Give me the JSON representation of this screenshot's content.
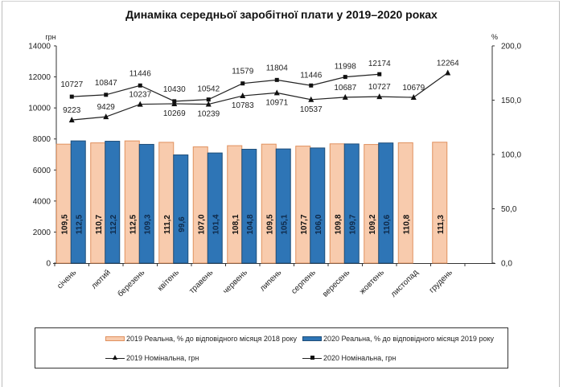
{
  "chart_data": {
    "type": "bar",
    "title": "Динаміка середньої заробітної плати у 2019–2020 роках",
    "categories": [
      "січень",
      "лютий",
      "березень",
      "квітень",
      "травень",
      "червень",
      "липень",
      "серпень",
      "вересень",
      "жовтень",
      "листопад",
      "грудень"
    ],
    "left_axis": {
      "label": "грн",
      "min": 0,
      "max": 14000,
      "ticks": [
        "0",
        "2000",
        "4000",
        "6000",
        "8000",
        "10000",
        "12000",
        "14000"
      ]
    },
    "right_axis": {
      "label": "%",
      "min": 0,
      "max": 200,
      "ticks": [
        "0,0",
        "50,0",
        "100,0",
        "150,0",
        "200,0"
      ]
    },
    "grid": false,
    "legend_position": "bottom",
    "series": [
      {
        "name": "2019 Реальна, % до відповідного місяця 2018 року",
        "kind": "bar",
        "axis": "right",
        "color": "#F8CBAD",
        "border": "#E0915F",
        "values": [
          109.5,
          110.7,
          112.5,
          111.2,
          107.0,
          108.1,
          109.5,
          107.7,
          109.8,
          109.2,
          110.8,
          111.3
        ],
        "labels": [
          "109,5",
          "110,7",
          "112,5",
          "111,2",
          "107,0",
          "108,1",
          "109,5",
          "107,7",
          "109,8",
          "109,2",
          "110,8",
          "111,3"
        ]
      },
      {
        "name": "2020 Реальна, % до відповідного місяця 2019 року",
        "kind": "bar",
        "axis": "right",
        "color": "#2E75B6",
        "border": "#1F4E79",
        "values": [
          112.5,
          112.2,
          109.3,
          99.6,
          101.4,
          104.8,
          105.1,
          106.0,
          109.7,
          110.6,
          null,
          null
        ],
        "labels": [
          "112,5",
          "112,2",
          "109,3",
          "99,6",
          "101,4",
          "104,8",
          "105,1",
          "106,0",
          "109,7",
          "110,6",
          null,
          null
        ]
      },
      {
        "name": "2019 Номінальна, грн",
        "kind": "line",
        "marker": "triangle",
        "axis": "left",
        "color": "#222222",
        "values": [
          9223,
          9429,
          10237,
          10269,
          10239,
          10783,
          10971,
          10537,
          10687,
          10727,
          10679,
          12264
        ],
        "labels": [
          "9223",
          "9429",
          "10237",
          "10269",
          "10239",
          "10783",
          "10971",
          "10537",
          "10687",
          "10727",
          "10679",
          "12264"
        ]
      },
      {
        "name": "2020 Номінальна, грн",
        "kind": "line",
        "marker": "square",
        "axis": "left",
        "color": "#222222",
        "values": [
          10727,
          10847,
          11446,
          10430,
          10542,
          11579,
          11804,
          11446,
          11998,
          12174,
          null,
          null
        ],
        "labels": [
          "10727",
          "10847",
          "11446",
          "10430",
          "10542",
          "11579",
          "11804",
          "11446",
          "11998",
          "12174",
          null,
          null
        ]
      }
    ]
  },
  "legend": {
    "items": [
      {
        "label": "2019 Реальна, % до відповідного місяця 2018 року"
      },
      {
        "label": "2020 Реальна, % до відповідного місяця 2019 року"
      },
      {
        "label": "2019 Номінальна, грн"
      },
      {
        "label": "2020 Номінальна, грн"
      }
    ]
  }
}
